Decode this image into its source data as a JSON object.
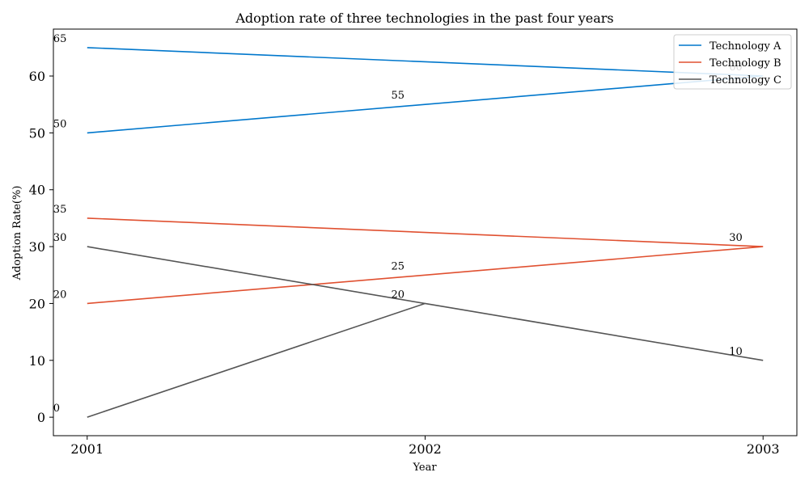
{
  "chart_data": {
    "type": "line",
    "title": "Adoption rate of three technologies in the past four years",
    "xlabel": "Year",
    "ylabel": "Adoption Rate(%)",
    "xlim": [
      2000.9,
      2003.1
    ],
    "ylim": [
      -3.25,
      68.25
    ],
    "xticks": [
      2001,
      2002,
      2003
    ],
    "yticks": [
      0,
      10,
      20,
      30,
      40,
      50,
      60
    ],
    "legend_position": "top-right",
    "grid": false,
    "series": [
      {
        "name": "Technology A",
        "color": "#0077cc",
        "x": [
          2001,
          2002,
          2003,
          2001
        ],
        "y": [
          50,
          55,
          60,
          65
        ]
      },
      {
        "name": "Technology B",
        "color": "#e05030",
        "x": [
          2001,
          2002,
          2003,
          2001
        ],
        "y": [
          20,
          25,
          30,
          35
        ]
      },
      {
        "name": "Technology C",
        "color": "#555555",
        "x": [
          2001,
          2002,
          2003,
          2001
        ],
        "y": [
          0,
          20,
          10,
          30
        ]
      }
    ]
  }
}
